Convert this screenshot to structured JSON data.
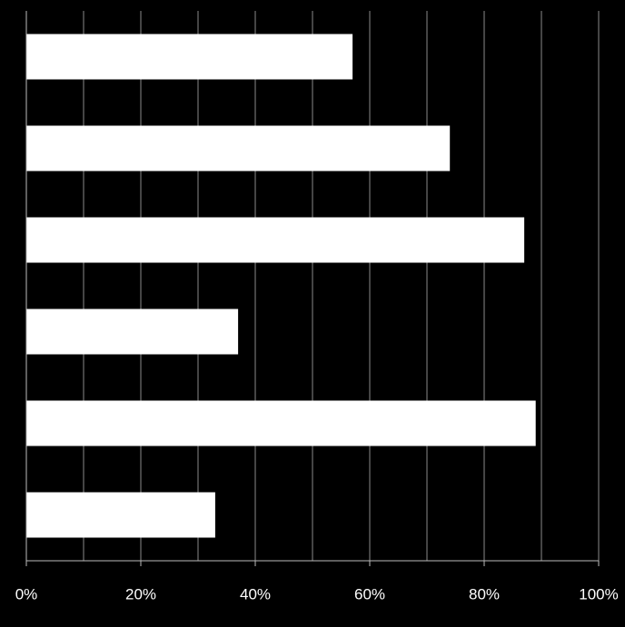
{
  "chart_data": {
    "type": "barh",
    "categories": [
      null,
      null,
      null,
      null,
      null,
      null
    ],
    "values": [
      57,
      74,
      87,
      37,
      89,
      33
    ],
    "color": "#ffffff",
    "background": "#000000",
    "xlim": [
      0,
      100
    ],
    "xticks": [
      {
        "value": 0,
        "label": "0%"
      },
      {
        "value": 20,
        "label": "20%"
      },
      {
        "value": 40,
        "label": "40%"
      },
      {
        "value": 60,
        "label": "60%"
      },
      {
        "value": 80,
        "label": "80%"
      },
      {
        "value": 100,
        "label": "100%"
      }
    ],
    "xminorticks": [
      10,
      30,
      50,
      70,
      90
    ],
    "grid": true
  }
}
